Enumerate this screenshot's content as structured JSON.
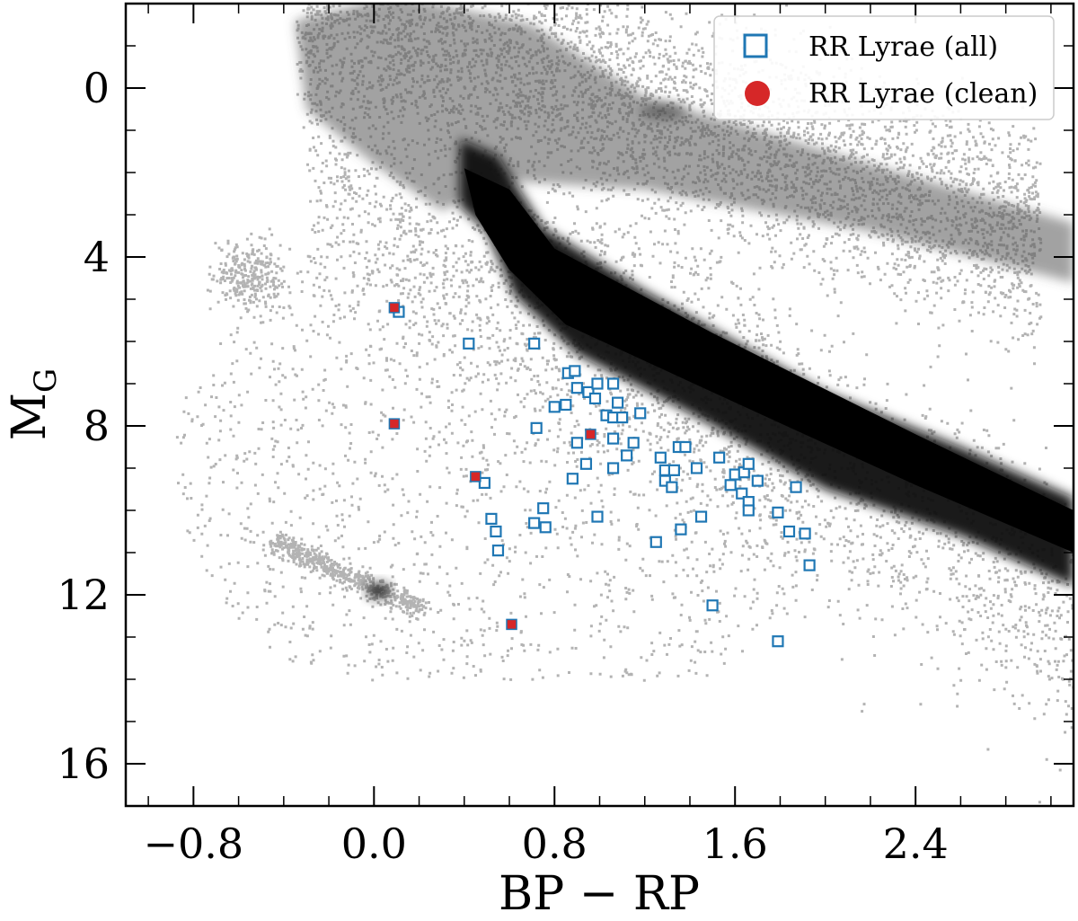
{
  "chart_data": {
    "type": "scatter",
    "xlabel": "BP − RP",
    "ylabel_main": "M",
    "ylabel_sub": "G",
    "xlim": [
      -1.1,
      3.1
    ],
    "ylim": [
      17.0,
      -2.0
    ],
    "x_ticks": [
      -0.8,
      0.0,
      0.8,
      1.6,
      2.4
    ],
    "x_tick_labels": [
      "−0.8",
      "0.0",
      "0.8",
      "1.6",
      "2.4"
    ],
    "y_ticks": [
      0,
      4,
      8,
      12,
      16
    ],
    "y_tick_labels": [
      "0",
      "4",
      "8",
      "12",
      "16"
    ],
    "grid": false,
    "legend_position": "top-right",
    "background": {
      "description": "dense grey 2D histogram of field stars (main sequence, giant branch, white dwarf sequence)",
      "color": "#000000"
    },
    "series": [
      {
        "name": "RR Lyrae (all)",
        "marker": "open-square",
        "color": "#1f77b4",
        "points": [
          [
            0.11,
            5.3
          ],
          [
            0.42,
            6.05
          ],
          [
            0.71,
            6.05
          ],
          [
            0.86,
            6.75
          ],
          [
            0.89,
            6.7
          ],
          [
            0.95,
            7.2
          ],
          [
            0.9,
            7.1
          ],
          [
            0.99,
            7.0
          ],
          [
            1.06,
            7.0
          ],
          [
            0.85,
            7.5
          ],
          [
            0.8,
            7.55
          ],
          [
            0.98,
            7.35
          ],
          [
            1.03,
            7.75
          ],
          [
            1.06,
            7.8
          ],
          [
            1.1,
            7.8
          ],
          [
            1.18,
            7.7
          ],
          [
            1.08,
            7.45
          ],
          [
            0.72,
            8.05
          ],
          [
            0.9,
            8.4
          ],
          [
            1.06,
            8.3
          ],
          [
            1.15,
            8.4
          ],
          [
            1.12,
            8.7
          ],
          [
            0.94,
            8.9
          ],
          [
            1.06,
            9.0
          ],
          [
            0.88,
            9.25
          ],
          [
            0.49,
            9.35
          ],
          [
            1.27,
            8.75
          ],
          [
            1.29,
            9.05
          ],
          [
            1.33,
            9.05
          ],
          [
            1.35,
            8.5
          ],
          [
            1.38,
            8.5
          ],
          [
            1.43,
            9.0
          ],
          [
            1.29,
            9.3
          ],
          [
            1.32,
            9.45
          ],
          [
            1.53,
            8.75
          ],
          [
            1.6,
            9.15
          ],
          [
            1.64,
            9.1
          ],
          [
            1.66,
            8.9
          ],
          [
            1.7,
            9.3
          ],
          [
            1.58,
            9.4
          ],
          [
            1.63,
            9.6
          ],
          [
            1.66,
            9.8
          ],
          [
            1.66,
            10.0
          ],
          [
            1.87,
            9.45
          ],
          [
            0.75,
            9.95
          ],
          [
            0.52,
            10.2
          ],
          [
            0.54,
            10.5
          ],
          [
            0.71,
            10.3
          ],
          [
            0.76,
            10.4
          ],
          [
            0.99,
            10.15
          ],
          [
            1.45,
            10.15
          ],
          [
            1.36,
            10.45
          ],
          [
            1.25,
            10.75
          ],
          [
            1.79,
            10.05
          ],
          [
            1.84,
            10.5
          ],
          [
            1.91,
            10.55
          ],
          [
            1.93,
            11.3
          ],
          [
            0.55,
            10.95
          ],
          [
            1.5,
            12.25
          ],
          [
            1.79,
            13.1
          ]
        ]
      },
      {
        "name": "RR Lyrae (clean)",
        "marker": "filled-circle",
        "color": "#d62728",
        "points": [
          [
            0.09,
            5.2
          ],
          [
            0.09,
            7.95
          ],
          [
            0.45,
            9.2
          ],
          [
            0.96,
            8.2
          ],
          [
            0.61,
            12.7
          ]
        ]
      }
    ]
  }
}
